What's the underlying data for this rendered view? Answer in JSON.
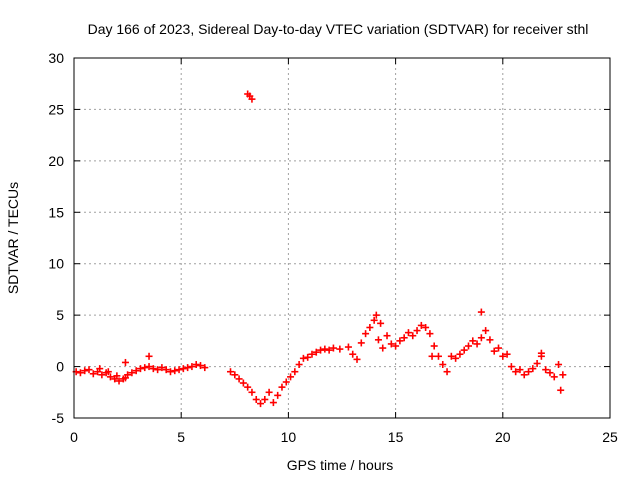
{
  "chart_data": {
    "type": "scatter",
    "title": "Day 166 of 2023, Sidereal Day-to-day VTEC variation (SDTVAR) for receiver sthl",
    "xlabel": "GPS time / hours",
    "ylabel": "SDTVAR / TECUs",
    "xlim": [
      0,
      25
    ],
    "ylim": [
      -5,
      30
    ],
    "x_ticks": [
      0,
      5,
      10,
      15,
      20,
      25
    ],
    "y_ticks": [
      -5,
      0,
      5,
      10,
      15,
      20,
      25,
      30
    ],
    "x_tick_labels": [
      "0",
      "5",
      "10",
      "15",
      "20",
      "25"
    ],
    "y_tick_labels": [
      "-5",
      "0",
      "5",
      "10",
      "15",
      "20",
      "25",
      "30"
    ],
    "grid": true,
    "marker": "plus",
    "color": "#ff0000",
    "series": [
      {
        "name": "SDTVAR",
        "x": [
          0.1,
          0.3,
          0.5,
          0.7,
          0.9,
          1.1,
          1.3,
          1.5,
          1.7,
          1.9,
          2.1,
          2.3,
          2.5,
          2.7,
          2.9,
          3.1,
          3.3,
          3.5,
          3.7,
          3.9,
          4.1,
          4.3,
          4.5,
          4.7,
          4.9,
          5.1,
          5.3,
          5.5,
          5.7,
          5.9,
          6.1,
          1.2,
          1.6,
          2.0,
          2.4,
          2.4,
          3.5,
          7.3,
          7.5,
          7.7,
          7.9,
          8.1,
          8.3,
          8.5,
          8.7,
          8.9,
          9.1,
          9.3,
          9.5,
          9.7,
          9.9,
          10.1,
          10.3,
          10.5,
          10.7,
          10.9,
          11.1,
          11.3,
          11.5,
          11.7,
          11.9,
          12.1,
          12.4,
          8.1,
          8.2,
          8.3,
          12.8,
          13.0,
          13.2,
          13.4,
          13.6,
          13.8,
          14.0,
          14.2,
          14.4,
          14.6,
          14.8,
          15.0,
          15.2,
          15.4,
          15.6,
          15.8,
          16.0,
          16.2,
          16.4,
          16.6,
          16.8,
          17.0,
          17.2,
          17.4,
          17.6,
          17.8,
          18.0,
          18.2,
          18.4,
          18.6,
          18.8,
          19.0,
          19.2,
          19.4,
          19.6,
          19.8,
          20.0,
          20.2,
          20.4,
          20.6,
          20.8,
          21.0,
          21.2,
          21.4,
          21.6,
          21.8,
          22.0,
          22.2,
          22.4,
          22.6,
          22.8,
          19.0,
          14.1,
          14.3,
          16.7,
          21.8,
          22.7
        ],
        "y": [
          -0.5,
          -0.6,
          -0.4,
          -0.3,
          -0.7,
          -0.5,
          -0.8,
          -0.6,
          -1.0,
          -1.2,
          -1.4,
          -1.2,
          -0.8,
          -0.6,
          -0.4,
          -0.2,
          -0.1,
          0.0,
          -0.2,
          -0.3,
          -0.1,
          -0.3,
          -0.5,
          -0.4,
          -0.3,
          -0.2,
          -0.1,
          0.0,
          0.2,
          0.1,
          -0.1,
          -0.2,
          -0.5,
          -0.9,
          -1.1,
          0.4,
          1.0,
          -0.5,
          -0.8,
          -1.2,
          -1.6,
          -2.0,
          -2.5,
          -3.2,
          -3.6,
          -3.2,
          -2.5,
          -3.5,
          -2.8,
          -2.0,
          -1.5,
          -1.0,
          -0.5,
          0.2,
          0.8,
          0.9,
          1.2,
          1.4,
          1.6,
          1.7,
          1.6,
          1.8,
          1.7,
          26.5,
          26.3,
          26.0,
          1.9,
          1.2,
          0.7,
          2.3,
          3.2,
          3.8,
          4.5,
          2.6,
          1.8,
          3.0,
          2.2,
          2.0,
          2.5,
          2.8,
          3.3,
          3.0,
          3.5,
          4.0,
          3.8,
          3.2,
          2.0,
          1.0,
          0.2,
          -0.5,
          1.0,
          0.8,
          1.2,
          1.6,
          2.0,
          2.5,
          2.2,
          2.8,
          3.5,
          2.6,
          1.5,
          1.8,
          1.0,
          1.2,
          0.0,
          -0.5,
          -0.3,
          -0.8,
          -0.5,
          -0.2,
          0.3,
          1.0,
          -0.3,
          -0.6,
          -1.0,
          0.2,
          -0.8,
          5.3,
          5.0,
          4.2,
          1.0,
          1.3,
          -2.3
        ]
      }
    ]
  }
}
